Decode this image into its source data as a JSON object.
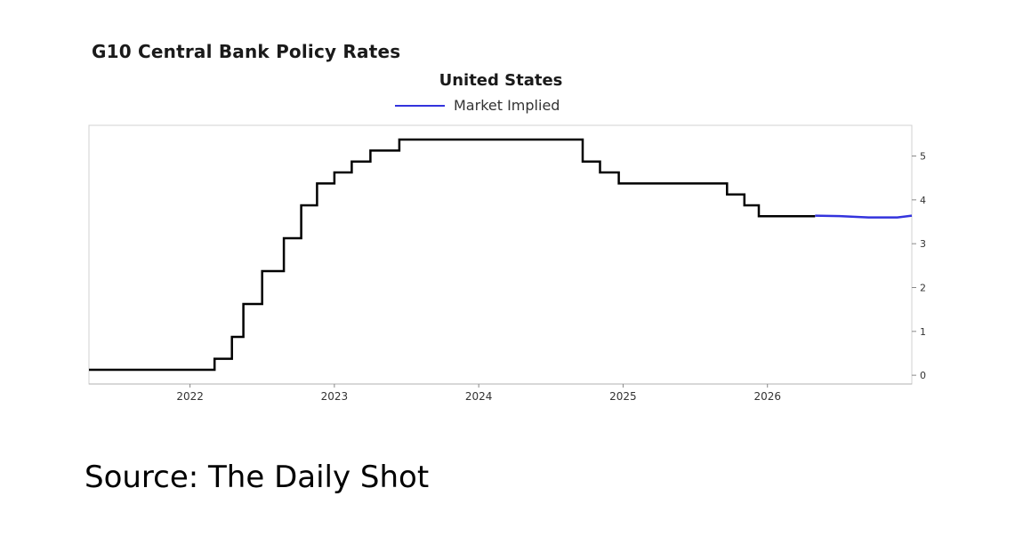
{
  "chart_data": {
    "type": "line",
    "title": "G10 Central Bank Policy Rates",
    "subtitle": "United States",
    "legend": [
      "Market Implied"
    ],
    "x_ticks": [
      "2022",
      "2023",
      "2024",
      "2025",
      "2026"
    ],
    "y_ticks": [
      "0",
      "1",
      "2",
      "3",
      "4",
      "5"
    ],
    "xlim": [
      2021.3,
      2027.0
    ],
    "ylim": [
      -0.2,
      5.7
    ],
    "grid": false,
    "series": [
      {
        "style": "step",
        "color": "#000000",
        "points": [
          [
            2021.3,
            0.125
          ],
          [
            2022.17,
            0.125
          ],
          [
            2022.17,
            0.375
          ],
          [
            2022.29,
            0.375
          ],
          [
            2022.29,
            0.875
          ],
          [
            2022.37,
            0.875
          ],
          [
            2022.37,
            1.625
          ],
          [
            2022.5,
            1.625
          ],
          [
            2022.5,
            2.375
          ],
          [
            2022.65,
            2.375
          ],
          [
            2022.65,
            3.125
          ],
          [
            2022.77,
            3.125
          ],
          [
            2022.77,
            3.875
          ],
          [
            2022.88,
            3.875
          ],
          [
            2022.88,
            4.375
          ],
          [
            2023.0,
            4.375
          ],
          [
            2023.0,
            4.625
          ],
          [
            2023.12,
            4.625
          ],
          [
            2023.12,
            4.875
          ],
          [
            2023.25,
            4.875
          ],
          [
            2023.25,
            5.125
          ],
          [
            2023.45,
            5.125
          ],
          [
            2023.45,
            5.375
          ],
          [
            2024.72,
            5.375
          ],
          [
            2024.72,
            4.875
          ],
          [
            2024.84,
            4.875
          ],
          [
            2024.84,
            4.625
          ],
          [
            2024.97,
            4.625
          ],
          [
            2024.97,
            4.375
          ],
          [
            2025.72,
            4.375
          ],
          [
            2025.72,
            4.125
          ],
          [
            2025.84,
            4.125
          ],
          [
            2025.84,
            3.875
          ],
          [
            2025.94,
            3.875
          ],
          [
            2025.94,
            3.625
          ],
          [
            2026.33,
            3.625
          ]
        ]
      },
      {
        "name": "Market Implied",
        "style": "line",
        "color": "#3333dd",
        "points": [
          [
            2026.33,
            3.64
          ],
          [
            2026.5,
            3.63
          ],
          [
            2026.7,
            3.6
          ],
          [
            2026.9,
            3.6
          ],
          [
            2027.0,
            3.64
          ]
        ]
      }
    ]
  },
  "footer": {
    "source": "Source: The Daily Shot"
  }
}
